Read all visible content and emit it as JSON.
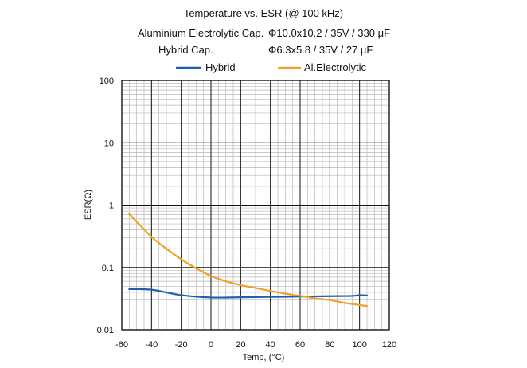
{
  "chart_data": {
    "type": "line",
    "title": "Temperature vs. ESR (@ 100 kHz)",
    "subtitle_rows": [
      {
        "name": "Aluminium Electrolytic Cap.",
        "spec": "Φ10.0x10.2 / 35V / 330 μF"
      },
      {
        "name": "Hybrid Cap.",
        "spec": "Φ6.3x5.8 / 35V / 27 μF"
      }
    ],
    "xlabel": "Temp, (°C)",
    "ylabel": "ESR(Ω)",
    "xlim": [
      -60,
      120
    ],
    "ylim": [
      0.01,
      100
    ],
    "yscale": "log",
    "grid": true,
    "legend_position": "top-center",
    "x_ticks": [
      -60,
      -40,
      -20,
      0,
      20,
      40,
      60,
      80,
      100,
      120
    ],
    "y_ticks": [
      100,
      10,
      1,
      0.1,
      0.01
    ],
    "series": [
      {
        "name": "Hybrid",
        "color": "#1f5fae",
        "x": [
          -55,
          -40,
          -20,
          0,
          20,
          40,
          60,
          80,
          95,
          100,
          105
        ],
        "y": [
          0.045,
          0.044,
          0.036,
          0.033,
          0.0333,
          0.0337,
          0.0342,
          0.0347,
          0.035,
          0.036,
          0.0356
        ]
      },
      {
        "name": "Al.Electrolytic",
        "color": "#f0a12a",
        "x": [
          -55,
          -40,
          -30,
          -20,
          -10,
          0,
          10,
          20,
          30,
          40,
          50,
          60,
          70,
          80,
          90,
          100,
          105
        ],
        "y": [
          0.72,
          0.31,
          0.2,
          0.135,
          0.097,
          0.073,
          0.06,
          0.052,
          0.047,
          0.042,
          0.038,
          0.035,
          0.032,
          0.03,
          0.027,
          0.025,
          0.024
        ]
      }
    ]
  }
}
